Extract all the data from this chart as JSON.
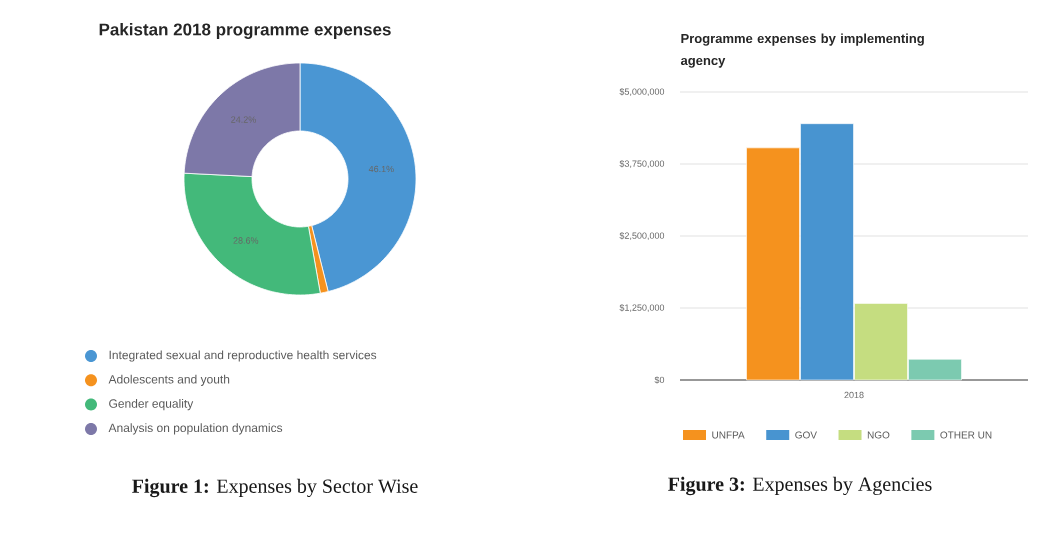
{
  "chart_data": [
    {
      "type": "donut",
      "title": "Pakistan 2018 programme expenses",
      "categories": [
        "Integrated sexual and reproductive health services",
        "Adolescents and youth",
        "Gender equality",
        "Analysis on population dynamics"
      ],
      "values": [
        46.1,
        1.1,
        28.6,
        24.2
      ],
      "value_labels": [
        "46.1%",
        null,
        "28.6%",
        "24.2%"
      ],
      "colors": [
        "#4a96d3",
        "#f5921e",
        "#43b97a",
        "#7d78a8"
      ],
      "legend": "bottom",
      "annotations": [
        "**Figure 1:** Expenses by Sector Wise"
      ]
    },
    {
      "type": "bar",
      "title": "Programme expenses by implementing agency",
      "categories": [
        "2018"
      ],
      "series": [
        {
          "name": "UNFPA",
          "color": "#f5921e",
          "values": [
            4030000
          ]
        },
        {
          "name": "GOV",
          "color": "#4894d0",
          "values": [
            4450000
          ]
        },
        {
          "name": "NGO",
          "color": "#c5dd80",
          "values": [
            1330000
          ]
        },
        {
          "name": "OTHER UN",
          "color": "#7ccab0",
          "values": [
            360000
          ]
        }
      ],
      "ylim": [
        0,
        5000000
      ],
      "yticks": [
        {
          "value": 0,
          "label": "$0"
        },
        {
          "value": 1250000,
          "label": "$1,250,000"
        },
        {
          "value": 2500000,
          "label": "$2,500,000"
        },
        {
          "value": 3750000,
          "label": "$3,750,000"
        },
        {
          "value": 5000000,
          "label": "$5,000,000"
        }
      ],
      "grid": "y",
      "legend": "bottom",
      "annotations": [
        "**Figure 3:** Expenses by Agencies"
      ]
    }
  ]
}
